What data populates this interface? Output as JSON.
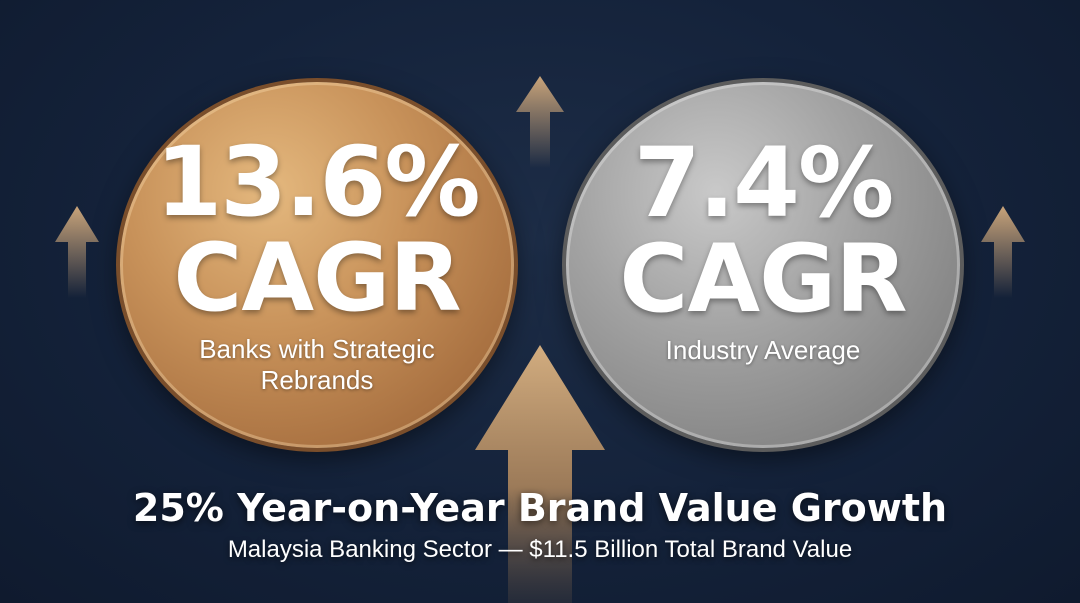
{
  "gold_stat": {
    "value": "13.6%",
    "label": "CAGR",
    "description": "Banks with Strategic Rebrands"
  },
  "silver_stat": {
    "value": "7.4%",
    "label": "CAGR",
    "description": "Industry Average"
  },
  "headline": "25% Year-on-Year Brand Value Growth",
  "subline": "Malaysia Banking Sector — $11.5 Billion Total Brand Value",
  "colors": {
    "background": "#14223a",
    "gold": "#c8925a",
    "silver": "#a3a3a3",
    "arrow": "#c9a47a",
    "text": "#ffffff"
  },
  "icons": [
    "up-arrow-icon"
  ]
}
